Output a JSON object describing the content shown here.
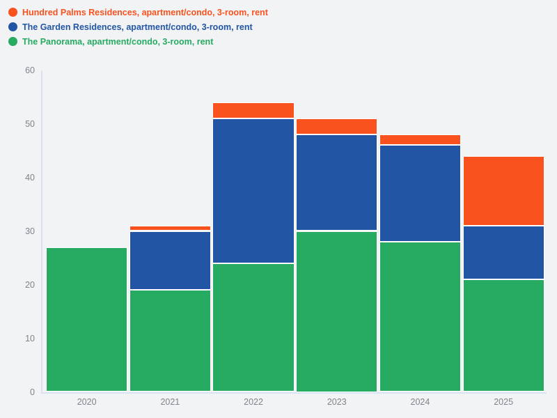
{
  "chart_data": {
    "type": "bar",
    "stacked": true,
    "title": "",
    "xlabel": "",
    "ylabel": "",
    "categories": [
      "2020",
      "2021",
      "2022",
      "2023",
      "2024",
      "2025"
    ],
    "series": [
      {
        "name": "Hundred Palms Residences, apartment/condo, 3-room, rent",
        "color": "#FA521E",
        "values": [
          0,
          1,
          3,
          3,
          2,
          13
        ]
      },
      {
        "name": "The Garden Residences, apartment/condo, 3-room, rent",
        "color": "#2255A4",
        "values": [
          0,
          11,
          27,
          18,
          18,
          10
        ]
      },
      {
        "name": "The Panorama, apartment/condo, 3-room, rent",
        "color": "#27AB62",
        "values": [
          27,
          19,
          24,
          30,
          28,
          21
        ]
      }
    ],
    "stack_order": "bottom-to-top is reverse of series list (green bottom, blue middle, orange top)",
    "totals": [
      27,
      31,
      54,
      51,
      48,
      44
    ],
    "ylim": [
      0,
      60
    ],
    "yticks": [
      0,
      10,
      20,
      30,
      40,
      50,
      60
    ],
    "grid": false,
    "legend_position": "top-left"
  },
  "colors": {
    "background": "#f1f3f4",
    "axis_line": "#d9e2f3",
    "tick_label": "#7e838c",
    "segment_border": "#ffffff"
  }
}
